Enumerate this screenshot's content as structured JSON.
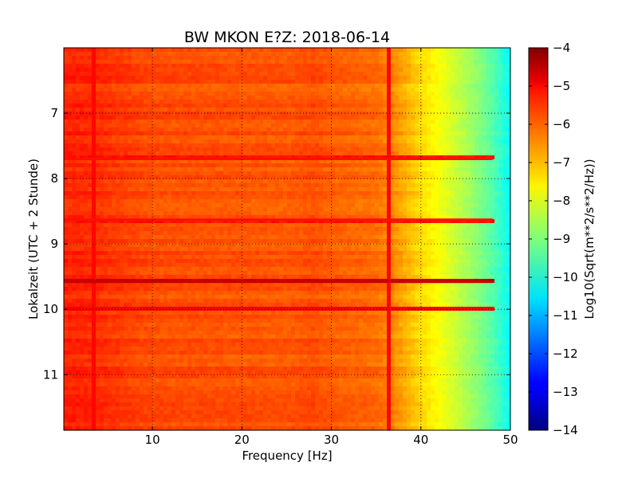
{
  "chart_data": {
    "type": "heatmap",
    "title": "BW MKON E?Z: 2018-06-14",
    "xlabel": "Frequency [Hz]",
    "ylabel": "Lokalzeit (UTC + 2 Stunde)",
    "xlim": [
      0.1,
      50
    ],
    "ylim": [
      6.0,
      11.85
    ],
    "y_inverted": true,
    "xticks": [
      10,
      20,
      30,
      40,
      50
    ],
    "yticks": [
      7,
      8,
      9,
      10,
      11
    ],
    "grid": true,
    "grid_style": "dotted",
    "colormap": "jet",
    "colorbar": {
      "label": "Log10(Sqrt(m**2/s**2/Hz))",
      "range": [
        -14,
        -4
      ],
      "ticks": [
        -4,
        -5,
        -6,
        -7,
        -8,
        -9,
        -10,
        -11,
        -12,
        -13,
        -14
      ]
    },
    "spectrum_profile": {
      "freq_hz": [
        0,
        2,
        5,
        10,
        20,
        25,
        28,
        30,
        35,
        37,
        38,
        40,
        42,
        44,
        46,
        48,
        50
      ],
      "log_amplitude": [
        -5.6,
        -5.6,
        -5.75,
        -6.0,
        -6.05,
        -6.1,
        -6.0,
        -6.15,
        -6.3,
        -6.6,
        -6.9,
        -7.4,
        -7.8,
        -8.3,
        -8.8,
        -9.4,
        -10.2
      ]
    },
    "horizontal_bands": [
      {
        "time_hour": 9.58,
        "log_amplitude": -4.7
      },
      {
        "time_hour": 10.0,
        "log_amplitude": -5.2
      },
      {
        "time_hour": 8.63,
        "log_amplitude": -5.4
      },
      {
        "time_hour": 7.7,
        "log_amplitude": -5.4
      }
    ],
    "vertical_lines": [
      {
        "freq_hz": 3.6,
        "log_amplitude": -5.3
      },
      {
        "freq_hz": 36.5,
        "log_amplitude": -5.3
      }
    ]
  },
  "colors": {
    "frame": "#000000",
    "grid": "#000000",
    "background": "#ffffff"
  }
}
